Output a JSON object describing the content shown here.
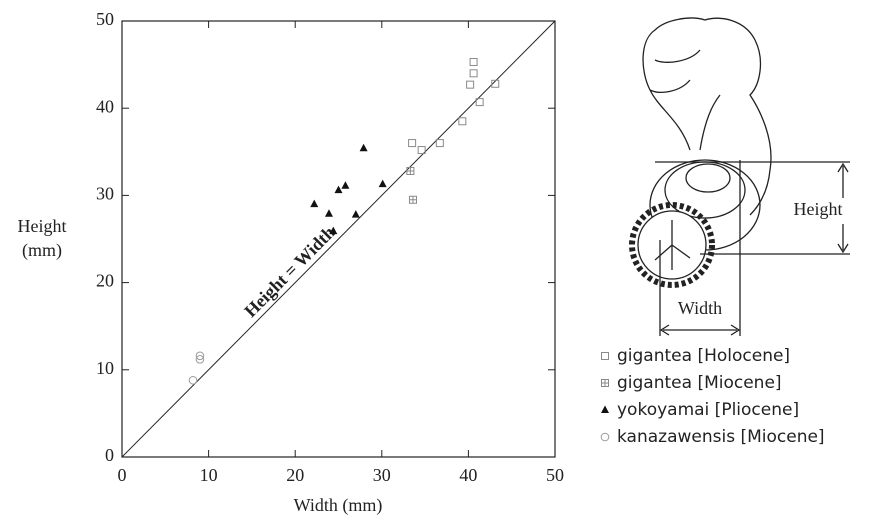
{
  "chart_data": {
    "type": "scatter",
    "x_label": "Width (mm)",
    "y_label_lines": [
      "Height",
      "(mm)"
    ],
    "annotation": "Height = Width",
    "xlim": [
      0,
      50
    ],
    "ylim": [
      0,
      50
    ],
    "xticks": [
      0,
      10,
      20,
      30,
      40,
      50
    ],
    "yticks": [
      0,
      10,
      20,
      30,
      40,
      50
    ],
    "series": [
      {
        "name": "gigantea [Holocene]",
        "marker": "square",
        "color": "#8a8a8a",
        "x": [
          40.6,
          40.6,
          40.2,
          43.1,
          41.3,
          39.3,
          36.7,
          34.6,
          33.5
        ],
        "values": [
          45.3,
          44.0,
          42.7,
          42.8,
          40.7,
          38.5,
          36.0,
          35.2,
          36.0
        ]
      },
      {
        "name": "gigantea [Miocene]",
        "marker": "crossed-square",
        "color": "#8a8a8a",
        "x": [
          33.3,
          33.6
        ],
        "values": [
          32.8,
          29.5
        ]
      },
      {
        "name": "yokoyamai [Pliocene]",
        "marker": "triangle",
        "color": "#111111",
        "x": [
          27.9,
          30.1,
          25.8,
          25.0,
          22.2,
          23.9,
          27.0,
          24.4
        ],
        "values": [
          35.4,
          31.3,
          31.1,
          30.6,
          29.0,
          27.9,
          27.8,
          25.9
        ]
      },
      {
        "name": "kanazawensis [Miocene]",
        "marker": "circle",
        "color": "#9a9a9a",
        "x": [
          9.0,
          9.0,
          8.2
        ],
        "values": [
          11.6,
          11.2,
          8.8
        ]
      }
    ]
  },
  "diagram": {
    "labels": [
      "Height",
      "Width"
    ]
  }
}
